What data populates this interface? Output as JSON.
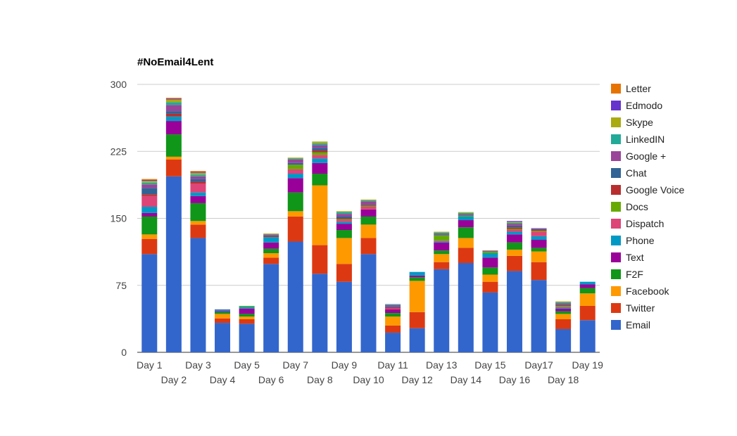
{
  "chart_data": {
    "type": "bar",
    "stacked": true,
    "title": "#NoEmail4Lent",
    "xlabel": "",
    "ylabel": "",
    "ylim": [
      0,
      300
    ],
    "yticks": [
      0,
      75,
      150,
      225,
      300
    ],
    "grid": true,
    "legend_position": "right",
    "categories": [
      "Day 1",
      "Day 2",
      "Day 3",
      "Day 4",
      "Day 5",
      "Day 6",
      "Day 7",
      "Day 8",
      "Day 9",
      "Day 10",
      "Day 11",
      "Day 12",
      "Day 13",
      "Day 14",
      "Day 15",
      "Day 16",
      "Day17",
      "Day 18",
      "Day 19"
    ],
    "series": [
      {
        "name": "Email",
        "color": "#3366cc",
        "values": [
          110,
          197,
          128,
          33,
          32,
          99,
          124,
          88,
          79,
          110,
          22,
          27,
          93,
          100,
          67,
          91,
          81,
          26,
          36
        ]
      },
      {
        "name": "Twitter",
        "color": "#dc3912",
        "values": [
          17,
          19,
          15,
          5,
          5,
          7,
          28,
          32,
          20,
          18,
          8,
          18,
          8,
          17,
          12,
          17,
          20,
          11,
          16
        ]
      },
      {
        "name": "Facebook",
        "color": "#ff9900",
        "values": [
          5,
          3,
          4,
          5,
          3,
          5,
          6,
          67,
          29,
          15,
          10,
          35,
          9,
          11,
          8,
          7,
          12,
          6,
          14
        ]
      },
      {
        "name": "F2F",
        "color": "#109618",
        "values": [
          20,
          25,
          20,
          2,
          3,
          5,
          21,
          13,
          9,
          9,
          4,
          4,
          4,
          12,
          8,
          8,
          4,
          3,
          6
        ]
      },
      {
        "name": "Text",
        "color": "#990099",
        "values": [
          4,
          15,
          8,
          1,
          6,
          7,
          16,
          12,
          7,
          8,
          4,
          2,
          9,
          8,
          11,
          9,
          9,
          3,
          4
        ]
      },
      {
        "name": "Phone",
        "color": "#0099c6",
        "values": [
          7,
          5,
          4,
          1,
          2,
          6,
          5,
          5,
          2,
          0,
          0,
          4,
          1,
          4,
          5,
          3,
          4,
          1,
          3
        ]
      },
      {
        "name": "Dispatch",
        "color": "#dd4477",
        "values": [
          12,
          0,
          10,
          0,
          0,
          0,
          5,
          4,
          2,
          3,
          1,
          0,
          1,
          0,
          0,
          2,
          5,
          1,
          0
        ]
      },
      {
        "name": "Docs",
        "color": "#66aa00",
        "values": [
          0,
          0,
          0,
          0,
          1,
          0,
          5,
          3,
          1,
          1,
          0,
          0,
          6,
          1,
          2,
          1,
          1,
          1,
          0
        ]
      },
      {
        "name": "Google Voice",
        "color": "#b82e2e",
        "values": [
          2,
          3,
          2,
          0,
          0,
          1,
          0,
          2,
          1,
          1,
          1,
          0,
          0,
          0,
          0,
          2,
          1,
          1,
          0
        ]
      },
      {
        "name": "Chat",
        "color": "#316395",
        "values": [
          7,
          3,
          3,
          1,
          0,
          1,
          2,
          3,
          2,
          1,
          1,
          0,
          1,
          1,
          0,
          2,
          1,
          1,
          0
        ]
      },
      {
        "name": "Google +",
        "color": "#994499",
        "values": [
          4,
          7,
          3,
          0,
          0,
          1,
          4,
          3,
          3,
          3,
          2,
          0,
          1,
          1,
          1,
          2,
          1,
          1,
          0
        ]
      },
      {
        "name": "LinkedIN",
        "color": "#22aa99",
        "values": [
          2,
          3,
          2,
          0,
          0,
          0,
          1,
          2,
          2,
          1,
          1,
          0,
          1,
          1,
          0,
          1,
          0,
          1,
          0
        ]
      },
      {
        "name": "Skype",
        "color": "#aaaa11",
        "values": [
          2,
          3,
          2,
          0,
          0,
          1,
          1,
          2,
          1,
          1,
          0,
          0,
          1,
          1,
          0,
          1,
          0,
          1,
          0
        ]
      },
      {
        "name": "Edmodo",
        "color": "#6633cc",
        "values": [
          1,
          1,
          1,
          0,
          0,
          0,
          0,
          0,
          0,
          0,
          0,
          0,
          0,
          0,
          0,
          1,
          0,
          0,
          0
        ]
      },
      {
        "name": "Letter",
        "color": "#e67300",
        "values": [
          1,
          1,
          1,
          0,
          0,
          0,
          0,
          0,
          0,
          0,
          0,
          0,
          0,
          0,
          0,
          0,
          0,
          0,
          0
        ]
      }
    ]
  }
}
